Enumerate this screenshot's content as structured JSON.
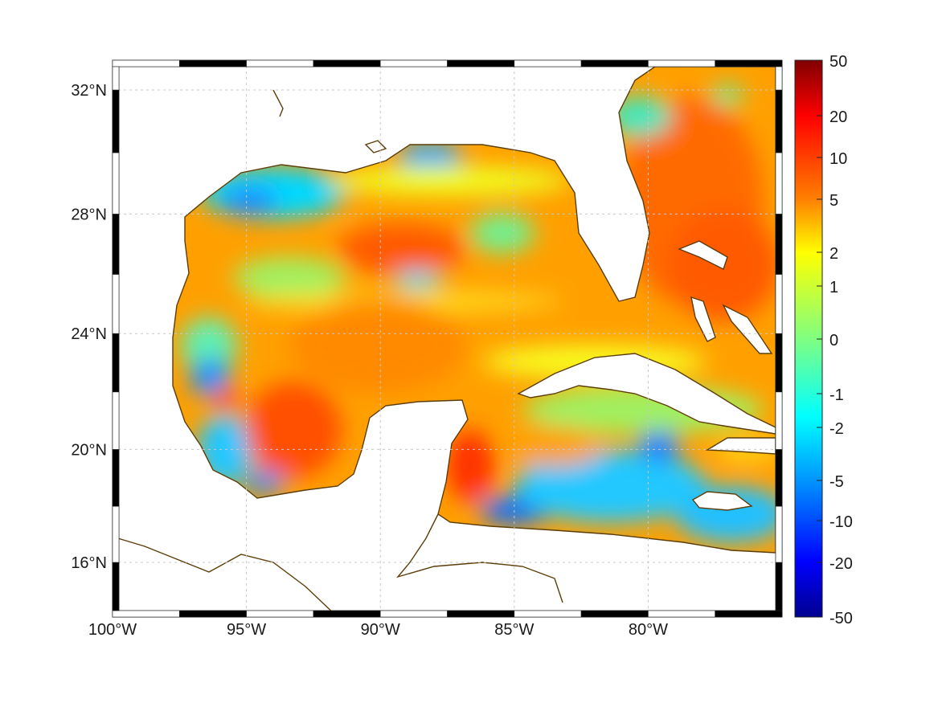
{
  "map": {
    "projection": "mercator",
    "lon_range": [
      -100,
      -75
    ],
    "lat_range": [
      14,
      33
    ],
    "lon_ticks": [
      {
        "value": -100,
        "label": "100°W"
      },
      {
        "value": -95,
        "label": "95°W"
      },
      {
        "value": -90,
        "label": "90°W"
      },
      {
        "value": -85,
        "label": "85°W"
      },
      {
        "value": -80,
        "label": "80°W"
      }
    ],
    "lat_ticks": [
      {
        "value": 32,
        "label": "32°N"
      },
      {
        "value": 28,
        "label": "28°N"
      },
      {
        "value": 24,
        "label": "24°N"
      },
      {
        "value": 20,
        "label": "20°N"
      },
      {
        "value": 16,
        "label": "16°N"
      }
    ],
    "coast_color": "#5c3d08",
    "grid_color": "#c8c8c8"
  },
  "colorbar": {
    "colormap": "jet",
    "ticks": [
      "50",
      "20",
      "10",
      "5",
      "2",
      "1",
      "0",
      "-1",
      "-2",
      "-5",
      "-10",
      "-20",
      "-50"
    ],
    "colors": [
      "#800000",
      "#ff0000",
      "#ff8000",
      "#ffff00",
      "#80ff80",
      "#00ffff",
      "#0080ff",
      "#0000ff",
      "#00008f"
    ]
  }
}
